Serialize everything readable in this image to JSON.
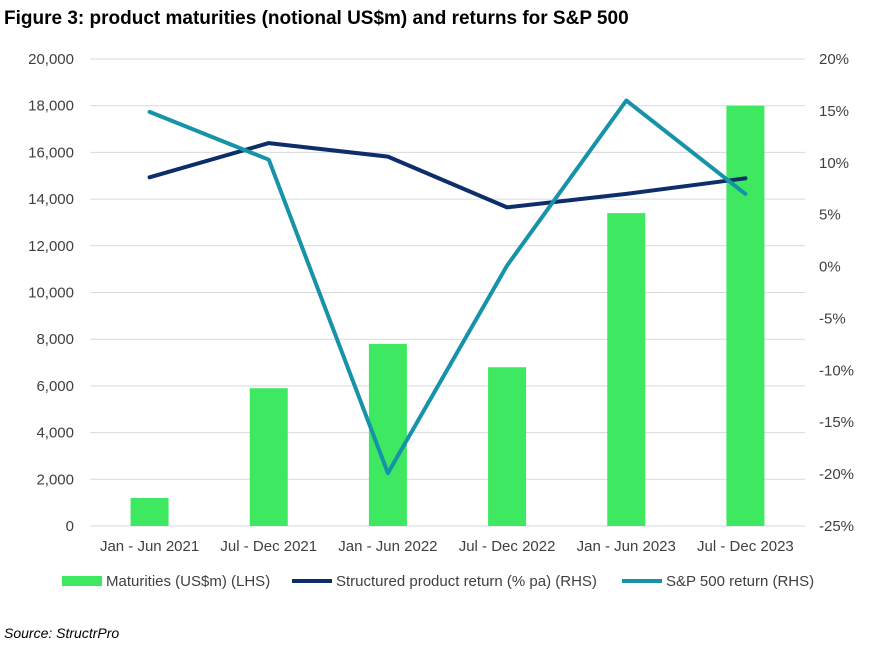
{
  "chart_data": {
    "type": "bar",
    "title": "Figure 3: product maturities (notional US$m) and returns for S&P 500",
    "source": "Source: StructrPro",
    "categories": [
      "Jan - Jun 2021",
      "Jul - Dec 2021",
      "Jan - Jun 2022",
      "Jul - Dec 2022",
      "Jan - Jun 2023",
      "Jul - Dec 2023"
    ],
    "left_axis": {
      "ylim": [
        0,
        20000
      ],
      "ticks": [
        0,
        2000,
        4000,
        6000,
        8000,
        10000,
        12000,
        14000,
        16000,
        18000,
        20000
      ],
      "tick_labels": [
        "0",
        "2,000",
        "4,000",
        "6,000",
        "8,000",
        "10,000",
        "12,000",
        "14,000",
        "16,000",
        "18,000",
        "20,000"
      ]
    },
    "right_axis": {
      "ylim": [
        -25,
        20
      ],
      "ticks": [
        -25,
        -20,
        -15,
        -10,
        -5,
        0,
        5,
        10,
        15,
        20
      ],
      "tick_labels": [
        "-25%",
        "-20%",
        "-15%",
        "-10%",
        "-5%",
        "0%",
        "5%",
        "10%",
        "15%",
        "20%"
      ]
    },
    "grid": true,
    "legend_position": "bottom",
    "series": [
      {
        "name": "Maturities (US$m) (LHS)",
        "type": "bar",
        "axis": "left",
        "color": "#3ee860",
        "values": [
          1200,
          5900,
          7800,
          6800,
          13400,
          18000
        ]
      },
      {
        "name": "Structured product return (% pa) (RHS)",
        "type": "line",
        "axis": "right",
        "color": "#0d2d6b",
        "values": [
          8.6,
          11.9,
          10.6,
          5.7,
          7.0,
          8.5
        ]
      },
      {
        "name": "S&P 500 return (RHS)",
        "type": "line",
        "axis": "right",
        "color": "#1693a8",
        "values": [
          14.9,
          10.3,
          -19.9,
          0.1,
          16.0,
          7.0
        ]
      }
    ]
  }
}
